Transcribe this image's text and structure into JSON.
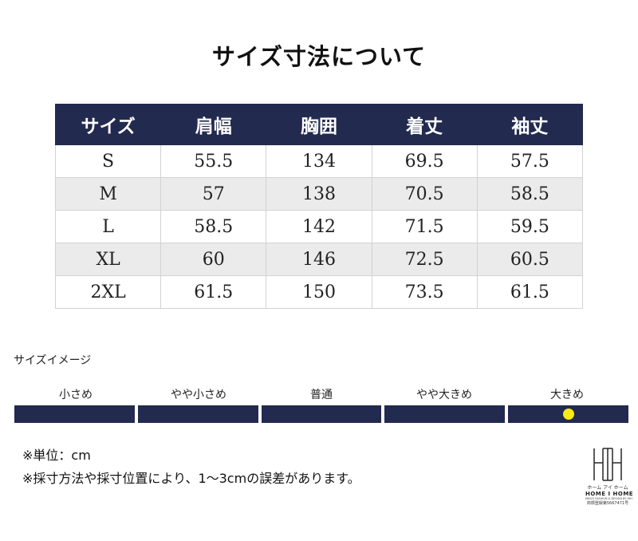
{
  "title": "サイズ寸法について",
  "table": {
    "headers": [
      "サイズ",
      "肩幅",
      "胸囲",
      "着丈",
      "袖丈"
    ],
    "rows": [
      [
        "S",
        "55.5",
        "134",
        "69.5",
        "57.5"
      ],
      [
        "M",
        "57",
        "138",
        "70.5",
        "58.5"
      ],
      [
        "L",
        "58.5",
        "142",
        "71.5",
        "59.5"
      ],
      [
        "XL",
        "60",
        "146",
        "72.5",
        "60.5"
      ],
      [
        "2XL",
        "61.5",
        "150",
        "73.5",
        "61.5"
      ]
    ]
  },
  "size_image": {
    "heading": "サイズイメージ",
    "labels": [
      "小さめ",
      "やや小さめ",
      "普通",
      "やや大きめ",
      "大きめ"
    ],
    "selected_index": 4,
    "bar_color": "#232a4f",
    "marker_color": "#f7ec13"
  },
  "notes": [
    "※単位：cm",
    "※採寸方法や採寸位置により、1～3cmの誤差があります。"
  ],
  "logo": {
    "kana": "ホーム アイ ホーム",
    "name": "HOME I HOME",
    "tagline": "MEN'S FASHION & DESIGN BY HIH",
    "registration": "商標登録第5667471号"
  },
  "colors": {
    "header_bg": "#232a4f",
    "header_text": "#ffffff",
    "row_alt_bg": "#ebebeb"
  }
}
